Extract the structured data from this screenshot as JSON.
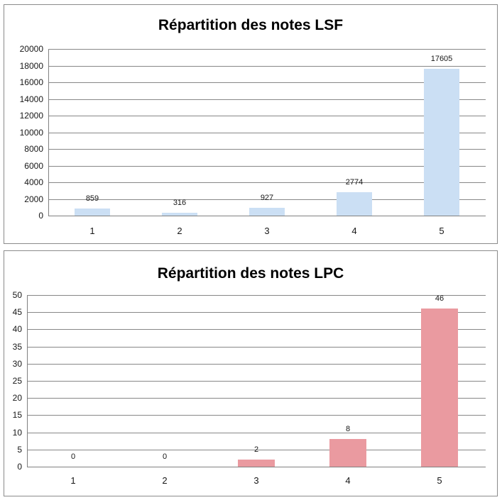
{
  "chart_data": [
    {
      "type": "bar",
      "title": "Répartition des notes LSF",
      "categories": [
        "1",
        "2",
        "3",
        "4",
        "5"
      ],
      "values": [
        859,
        316,
        927,
        2774,
        17605
      ],
      "data_labels": [
        "859",
        "316",
        "927",
        "2774",
        "17605"
      ],
      "ylim": [
        0,
        20000
      ],
      "ystep": 2000,
      "ytick_labels": [
        "0",
        "2000",
        "4000",
        "6000",
        "8000",
        "10000",
        "12000",
        "14000",
        "16000",
        "18000",
        "20000"
      ],
      "bar_color": "#cbdff4",
      "gridline_color": "#878787",
      "axis_color": "#808080",
      "grid": true,
      "legend": "none",
      "xlabel": "",
      "ylabel": ""
    },
    {
      "type": "bar",
      "title": "Répartition des notes LPC",
      "categories": [
        "1",
        "2",
        "3",
        "4",
        "5"
      ],
      "values": [
        0,
        0,
        2,
        8,
        46
      ],
      "data_labels": [
        "0",
        "0",
        "2",
        "8",
        "46"
      ],
      "ylim": [
        0,
        50
      ],
      "ystep": 5,
      "ytick_labels": [
        "0",
        "5",
        "10",
        "15",
        "20",
        "25",
        "30",
        "35",
        "40",
        "45",
        "50"
      ],
      "bar_color": "#ea9aa0",
      "gridline_color": "#878787",
      "axis_color": "#808080",
      "grid": true,
      "legend": "none",
      "xlabel": "",
      "ylabel": ""
    }
  ],
  "colors": {
    "panel_border": "#8b8b8b",
    "background": "#ffffff",
    "text": "#161616"
  }
}
